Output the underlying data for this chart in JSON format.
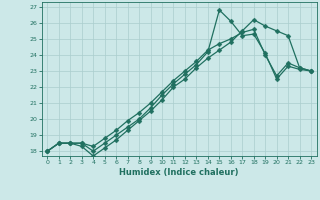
{
  "xlabel": "Humidex (Indice chaleur)",
  "bg_color": "#cce8e8",
  "grid_color": "#aacece",
  "line_color": "#207060",
  "xlim": [
    -0.5,
    23.5
  ],
  "ylim": [
    17.7,
    27.3
  ],
  "xticks": [
    0,
    1,
    2,
    3,
    4,
    5,
    6,
    7,
    8,
    9,
    10,
    11,
    12,
    13,
    14,
    15,
    16,
    17,
    18,
    19,
    20,
    21,
    22,
    23
  ],
  "yticks": [
    18,
    19,
    20,
    21,
    22,
    23,
    24,
    25,
    26,
    27
  ],
  "line1_x": [
    0,
    1,
    2,
    3,
    4,
    5,
    6,
    7,
    8,
    9,
    10,
    11,
    12,
    13,
    14,
    15,
    16,
    17,
    18,
    19,
    20,
    21,
    22,
    23
  ],
  "line1_y": [
    18.0,
    18.5,
    18.5,
    18.5,
    18.0,
    18.5,
    19.0,
    19.5,
    20.0,
    20.7,
    21.5,
    22.2,
    22.8,
    23.4,
    24.2,
    26.8,
    26.1,
    25.2,
    25.3,
    24.1,
    22.5,
    23.3,
    23.1,
    23.0
  ],
  "line2_x": [
    0,
    1,
    2,
    3,
    4,
    5,
    6,
    7,
    8,
    9,
    10,
    11,
    12,
    13,
    14,
    15,
    16,
    17,
    18,
    19,
    20,
    21,
    22,
    23
  ],
  "line2_y": [
    18.0,
    18.5,
    18.5,
    18.3,
    17.7,
    18.2,
    18.7,
    19.3,
    19.9,
    20.5,
    21.2,
    22.0,
    22.5,
    23.2,
    23.8,
    24.3,
    24.8,
    25.5,
    26.2,
    25.8,
    25.5,
    25.2,
    23.2,
    23.0
  ],
  "line3_x": [
    0,
    1,
    2,
    3,
    4,
    5,
    6,
    7,
    8,
    9,
    10,
    11,
    12,
    13,
    14,
    15,
    16,
    17,
    18,
    19,
    20,
    21,
    22,
    23
  ],
  "line3_y": [
    18.0,
    18.5,
    18.5,
    18.5,
    18.3,
    18.8,
    19.3,
    19.9,
    20.4,
    21.0,
    21.7,
    22.4,
    23.0,
    23.6,
    24.3,
    24.7,
    25.0,
    25.4,
    25.6,
    24.0,
    22.7,
    23.5,
    23.2,
    23.0
  ]
}
